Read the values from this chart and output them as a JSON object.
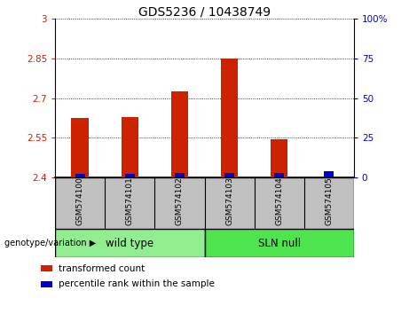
{
  "title": "GDS5236 / 10438749",
  "samples": [
    "GSM574100",
    "GSM574101",
    "GSM574102",
    "GSM574103",
    "GSM574104",
    "GSM574105"
  ],
  "red_values": [
    2.625,
    2.628,
    2.725,
    2.85,
    2.545,
    2.4
  ],
  "blue_percentiles": [
    2,
    2,
    3,
    3,
    3,
    4
  ],
  "ylim_left": [
    2.4,
    3.0
  ],
  "ylim_right": [
    0,
    100
  ],
  "yticks_left": [
    2.4,
    2.55,
    2.7,
    2.85,
    3.0
  ],
  "yticks_right": [
    0,
    25,
    50,
    75,
    100
  ],
  "ytick_labels_left": [
    "2.4",
    "2.55",
    "2.7",
    "2.85",
    "3"
  ],
  "ytick_labels_right": [
    "0",
    "25",
    "50",
    "75",
    "100%"
  ],
  "groups": [
    {
      "label": "wild type",
      "start": 0,
      "end": 3,
      "color": "#90EE90"
    },
    {
      "label": "SLN null",
      "start": 3,
      "end": 6,
      "color": "#4EE44E"
    }
  ],
  "group_label_prefix": "genotype/variation",
  "red_color": "#CC2200",
  "blue_color": "#0000CC",
  "bar_width": 0.35,
  "base_value": 2.4,
  "legend_items": [
    {
      "color": "#CC2200",
      "label": "transformed count"
    },
    {
      "color": "#0000CC",
      "label": "percentile rank within the sample"
    }
  ],
  "grid_color": "black",
  "grid_linestyle": "dotted",
  "tick_label_color_left": "#CC2200",
  "tick_label_color_right": "#0000CC",
  "xlabel_area_color": "#C0C0C0",
  "title_fontsize": 10,
  "axis_fontsize": 7.5,
  "legend_fontsize": 7.5,
  "sample_fontsize": 6.5
}
